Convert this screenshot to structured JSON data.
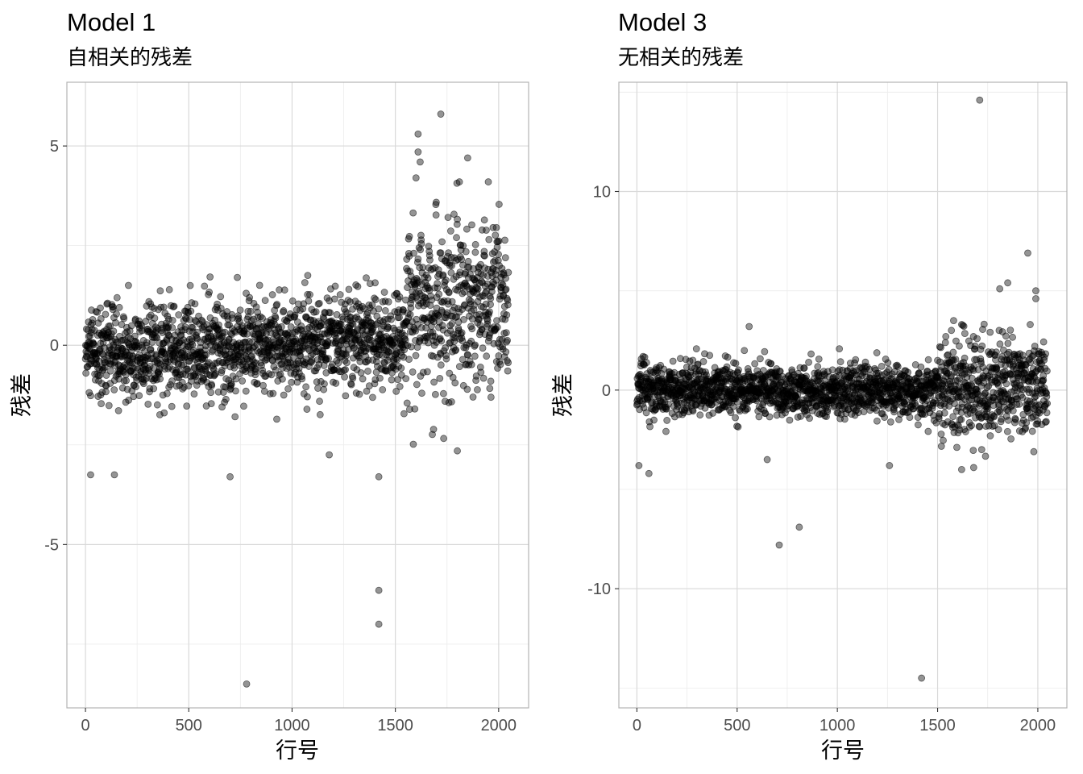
{
  "chart_data": [
    {
      "type": "scatter",
      "title": "Model 1",
      "subtitle": "自相关的残差",
      "xlabel": "行号",
      "ylabel": "残差",
      "xlim": [
        -90,
        2145
      ],
      "ylim": [
        -9.1,
        6.6
      ],
      "xticks": [
        0,
        500,
        1000,
        1500,
        2000
      ],
      "xtick_labels": [
        "0",
        "500",
        "1000",
        "1500",
        "2000"
      ],
      "yticks": [
        -5,
        0,
        5
      ],
      "ytick_labels": [
        "-5",
        "0",
        "5"
      ],
      "grid": true,
      "n_points": 2048,
      "outliers": [
        {
          "x": 780,
          "y": -8.5
        },
        {
          "x": 1420,
          "y": -7.0
        },
        {
          "x": 1420,
          "y": -6.15
        },
        {
          "x": 1420,
          "y": -3.3
        },
        {
          "x": 1720,
          "y": 5.8
        },
        {
          "x": 1610,
          "y": 5.3
        },
        {
          "x": 1850,
          "y": 4.7
        },
        {
          "x": 1610,
          "y": 4.85
        },
        {
          "x": 1620,
          "y": 4.6
        },
        {
          "x": 1600,
          "y": 4.2
        },
        {
          "x": 1810,
          "y": 4.1
        },
        {
          "x": 1950,
          "y": 4.1
        },
        {
          "x": 1800,
          "y": -2.65
        },
        {
          "x": 700,
          "y": -3.3
        },
        {
          "x": 25,
          "y": -3.25
        },
        {
          "x": 140,
          "y": -3.25
        },
        {
          "x": 1180,
          "y": -2.75
        }
      ],
      "segments": [
        {
          "x_from": 0,
          "x_to": 1550,
          "mean": -0.3,
          "mean_end": 0.2,
          "sd": 0.6
        },
        {
          "x_from": 1550,
          "x_to": 2048,
          "mean": 1.0,
          "mean_end": 0.9,
          "sd": 1.15
        }
      ]
    },
    {
      "type": "scatter",
      "title": "Model 3",
      "subtitle": "无相关的残差",
      "xlabel": "行号",
      "ylabel": "残差",
      "xlim": [
        -90,
        2145
      ],
      "ylim": [
        -16,
        15.5
      ],
      "xticks": [
        0,
        500,
        1000,
        1500,
        2000
      ],
      "xtick_labels": [
        "0",
        "500",
        "1000",
        "1500",
        "2000"
      ],
      "yticks": [
        -10,
        0,
        10
      ],
      "ytick_labels": [
        "-10",
        "0",
        "10"
      ],
      "grid": true,
      "n_points": 2048,
      "outliers": [
        {
          "x": 1710,
          "y": 14.6
        },
        {
          "x": 1420,
          "y": -14.5
        },
        {
          "x": 710,
          "y": -7.8
        },
        {
          "x": 810,
          "y": -6.9
        },
        {
          "x": 1950,
          "y": 6.9
        },
        {
          "x": 1850,
          "y": 5.4
        },
        {
          "x": 1990,
          "y": 5.0
        },
        {
          "x": 1990,
          "y": 4.6
        },
        {
          "x": 1810,
          "y": 5.1
        },
        {
          "x": 60,
          "y": -4.2
        },
        {
          "x": 10,
          "y": -3.8
        },
        {
          "x": 1260,
          "y": -3.8
        },
        {
          "x": 1980,
          "y": -3.1
        },
        {
          "x": 650,
          "y": -3.5
        },
        {
          "x": 560,
          "y": 3.2
        },
        {
          "x": 1580,
          "y": 3.5
        },
        {
          "x": 1620,
          "y": 3.3
        },
        {
          "x": 1680,
          "y": -3.9
        },
        {
          "x": 1620,
          "y": -4.0
        }
      ],
      "segments": [
        {
          "x_from": 0,
          "x_to": 1500,
          "mean": 0.0,
          "mean_end": 0.0,
          "sd": 0.65
        },
        {
          "x_from": 1500,
          "x_to": 2048,
          "mean": 0.0,
          "mean_end": 0.3,
          "sd": 1.25
        }
      ]
    }
  ]
}
